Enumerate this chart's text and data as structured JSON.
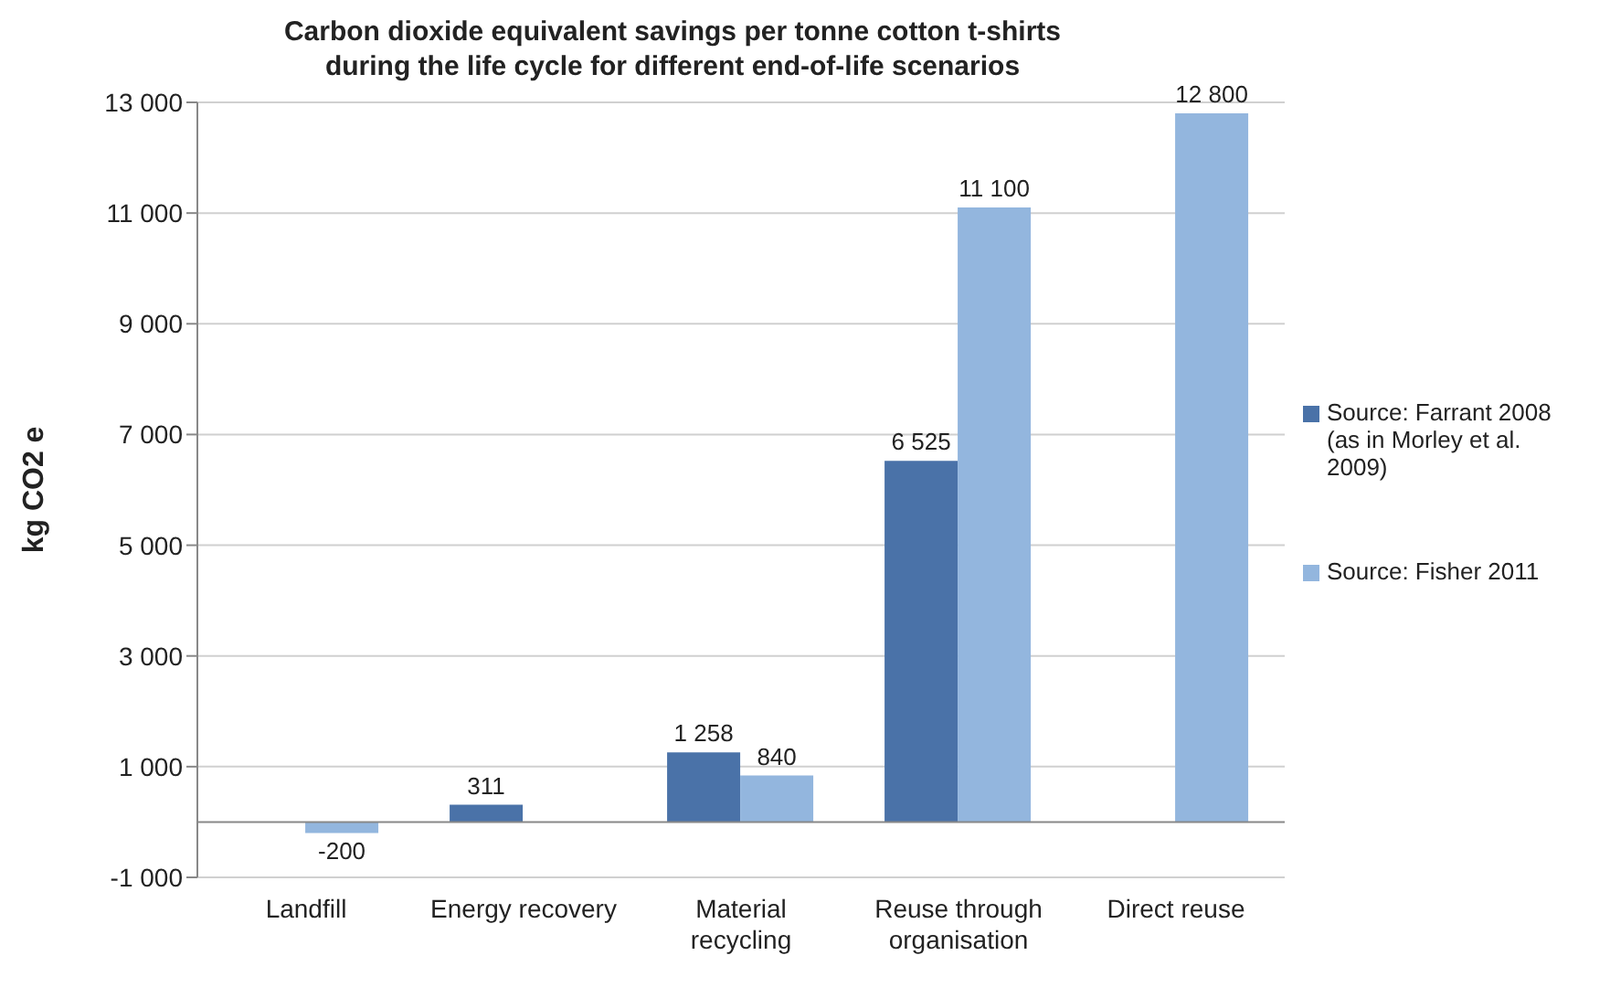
{
  "chart_data": {
    "type": "bar",
    "title": "Carbon dioxide equivalent savings per tonne cotton t-shirts\nduring the life cycle for different end-of-life scenarios",
    "ylabel": "kg CO2 e",
    "categories": [
      "Landfill",
      "Energy recovery",
      "Material recycling",
      "Reuse through organisation",
      "Direct reuse"
    ],
    "series": [
      {
        "name": "Source: Farrant 2008 (as in Morley et al. 2009)",
        "color": "#4a72a8",
        "values": [
          null,
          311,
          1258,
          6525,
          null
        ],
        "value_labels": [
          null,
          "311",
          "1 258",
          "6 525",
          null
        ]
      },
      {
        "name": "Source: Fisher 2011",
        "color": "#93b6de",
        "values": [
          -200,
          null,
          840,
          11100,
          12800
        ],
        "value_labels": [
          "-200",
          null,
          "840",
          "11 100",
          "12 800"
        ]
      }
    ],
    "ylim": [
      -1000,
      13000
    ],
    "yticks": [
      {
        "value": -1000,
        "label": "-1 000"
      },
      {
        "value": 1000,
        "label": "1 000"
      },
      {
        "value": 3000,
        "label": "3 000"
      },
      {
        "value": 5000,
        "label": "5 000"
      },
      {
        "value": 7000,
        "label": "7 000"
      },
      {
        "value": 9000,
        "label": "9 000"
      },
      {
        "value": 11000,
        "label": "11 000"
      },
      {
        "value": 13000,
        "label": "13 000"
      }
    ],
    "grid": "y",
    "legend": "right"
  }
}
